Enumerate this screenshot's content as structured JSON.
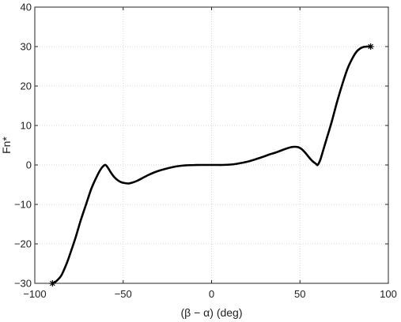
{
  "chart_data": {
    "type": "line",
    "title": "",
    "xlabel": "(β − α) (deg)",
    "ylabel": "Fn*",
    "xlim": [
      -100,
      100
    ],
    "ylim": [
      -30,
      40
    ],
    "xticks": [
      -100,
      -50,
      0,
      50,
      100
    ],
    "yticks": [
      -30,
      -20,
      -10,
      0,
      10,
      20,
      30,
      40
    ],
    "xtick_labels": [
      "−100",
      "−50",
      "0",
      "50",
      "100"
    ],
    "ytick_labels": [
      "−30",
      "−20",
      "−10",
      "0",
      "10",
      "20",
      "30",
      "40"
    ],
    "grid": true,
    "series": [
      {
        "name": "",
        "color": "#000000",
        "x": [
          -90,
          -88,
          -85,
          -82,
          -80,
          -77,
          -74,
          -71,
          -68,
          -65,
          -63,
          -61.5,
          -60,
          -58.5,
          -57,
          -55,
          -53,
          -51,
          -49,
          -47,
          -45,
          -42,
          -39,
          -36,
          -33,
          -30,
          -27,
          -24,
          -21,
          -18,
          -15,
          -12,
          -9,
          -6,
          -3,
          0,
          3,
          6,
          9,
          12,
          15,
          18,
          21,
          24,
          27,
          30,
          33,
          36,
          39,
          42,
          45,
          47,
          49,
          51,
          53,
          55,
          57,
          59,
          60,
          61.5,
          63,
          65,
          68,
          71,
          74,
          77,
          80,
          82,
          84,
          86,
          88,
          90
        ],
        "y": [
          -30,
          -29.5,
          -28,
          -25,
          -22.5,
          -18.5,
          -14,
          -10,
          -6,
          -3,
          -1.3,
          -0.4,
          0,
          -0.8,
          -1.9,
          -3.1,
          -3.9,
          -4.4,
          -4.6,
          -4.7,
          -4.5,
          -4,
          -3.3,
          -2.6,
          -2,
          -1.5,
          -1.1,
          -0.75,
          -0.45,
          -0.25,
          -0.12,
          -0.05,
          -0.02,
          0,
          0,
          0,
          0,
          0,
          0.05,
          0.15,
          0.35,
          0.6,
          0.9,
          1.3,
          1.75,
          2.2,
          2.7,
          3.1,
          3.6,
          4.1,
          4.5,
          4.6,
          4.5,
          4,
          3.1,
          2,
          1,
          0.3,
          0,
          1.3,
          3.5,
          6.5,
          11,
          16,
          20.5,
          24.5,
          27.3,
          28.7,
          29.5,
          29.9,
          30,
          30
        ]
      }
    ],
    "endpoint_markers": [
      {
        "x": -90,
        "y": -30,
        "symbol": "*"
      },
      {
        "x": 90,
        "y": 30,
        "symbol": "*"
      }
    ]
  }
}
